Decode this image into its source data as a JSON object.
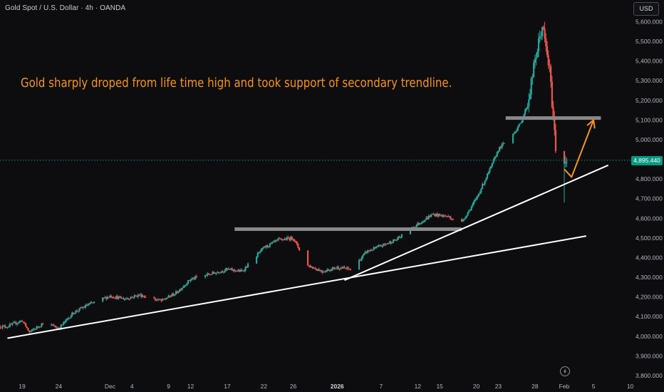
{
  "header": {
    "symbol_title": "Gold Spot / U.S. Dollar · 4h · OANDA",
    "currency_label": "USD"
  },
  "annotation": "Gold sharply droped from life time high and took support of secondary trendline.",
  "current_price_label": "4,895.440",
  "time_icon": "lightning-icon",
  "colors": {
    "background": "#0d0d0f",
    "up": "#26a69a",
    "down": "#ef5350",
    "annotation": "#f7931a",
    "price_line": "#089981",
    "level": "#888888",
    "trendline": "#ffffff"
  },
  "chart_data": {
    "type": "candlestick",
    "title": "",
    "xlabel": "",
    "ylabel": "",
    "ylim": [
      3760,
      5640
    ],
    "grid": false,
    "y_ticks": [
      "3,800.000",
      "3,900.000",
      "4,000.000",
      "4,100.000",
      "4,200.000",
      "4,300.000",
      "4,400.000",
      "4,500.000",
      "4,600.000",
      "4,700.000",
      "4,800.000",
      "4,900.000",
      "5,000.000",
      "5,100.000",
      "5,200.000",
      "5,300.000",
      "5,400.000",
      "5,500.000",
      "5,600.000"
    ],
    "y_tick_values": [
      3800,
      3900,
      4000,
      4100,
      4200,
      4300,
      4400,
      4500,
      4600,
      4700,
      4800,
      4900,
      5000,
      5100,
      5200,
      5300,
      5400,
      5500,
      5600
    ],
    "x_range": [
      "2025-11-16",
      "2026-02-09"
    ],
    "x_ticks": [
      "19",
      "24",
      "Dec",
      "4",
      "9",
      "12",
      "17",
      "22",
      "26",
      "2026",
      "7",
      "12",
      "15",
      "20",
      "23",
      "28",
      "Feb",
      "5",
      "10"
    ],
    "x_tick_dates": [
      "2025-11-19",
      "2025-11-24",
      "2025-12-01",
      "2025-12-04",
      "2025-12-09",
      "2025-12-12",
      "2025-12-17",
      "2025-12-22",
      "2025-12-26",
      "2026-01-01",
      "2026-01-07",
      "2026-01-12",
      "2026-01-15",
      "2026-01-20",
      "2026-01-23",
      "2026-01-28",
      "2026-02-01",
      "2026-02-05",
      "2026-02-10"
    ],
    "series": [
      {
        "style": "candles",
        "points": [
          [
            "2025-11-17",
            4050
          ],
          [
            "2025-11-19",
            4080
          ],
          [
            "2025-11-20",
            4020
          ],
          [
            "2025-11-22",
            4070
          ],
          [
            "2025-11-24",
            4040
          ],
          [
            "2025-11-26",
            4120
          ],
          [
            "2025-11-28",
            4160
          ],
          [
            "2025-12-01",
            4205
          ],
          [
            "2025-12-03",
            4190
          ],
          [
            "2025-12-05",
            4210
          ],
          [
            "2025-12-08",
            4180
          ],
          [
            "2025-12-10",
            4220
          ],
          [
            "2025-12-12",
            4290
          ],
          [
            "2025-12-15",
            4320
          ],
          [
            "2025-12-17",
            4340
          ],
          [
            "2025-12-19",
            4330
          ],
          [
            "2025-12-22",
            4450
          ],
          [
            "2025-12-24",
            4490
          ],
          [
            "2025-12-26",
            4500
          ],
          [
            "2025-12-28",
            4360
          ],
          [
            "2025-12-30",
            4330
          ],
          [
            "2026-01-01",
            4350
          ],
          [
            "2026-01-03",
            4340
          ],
          [
            "2026-01-05",
            4430
          ],
          [
            "2026-01-07",
            4460
          ],
          [
            "2026-01-09",
            4490
          ],
          [
            "2026-01-12",
            4570
          ],
          [
            "2026-01-14",
            4620
          ],
          [
            "2026-01-16",
            4610
          ],
          [
            "2026-01-18",
            4580
          ],
          [
            "2026-01-20",
            4700
          ],
          [
            "2026-01-22",
            4860
          ],
          [
            "2026-01-23",
            4950
          ],
          [
            "2026-01-25",
            5030
          ],
          [
            "2026-01-26",
            5080
          ],
          [
            "2026-01-27",
            5180
          ],
          [
            "2026-01-28",
            5400
          ],
          [
            "2026-01-29",
            5580
          ],
          [
            "2026-01-30",
            5350
          ],
          [
            "2026-01-31",
            4880
          ],
          [
            "2026-02-01",
            4895
          ]
        ]
      }
    ],
    "levels": [
      {
        "from": "2025-12-18",
        "to": "2026-01-18",
        "y": 4545
      },
      {
        "from": "2026-01-24",
        "to": "2026-02-06",
        "y": 5110
      }
    ],
    "trendlines": [
      {
        "from": [
          "2025-11-17",
          3990
        ],
        "to": [
          "2026-02-04",
          4510
        ]
      },
      {
        "from": [
          "2026-01-02",
          4285
        ],
        "to": [
          "2026-02-07",
          4870
        ]
      }
    ],
    "projection": [
      [
        "2026-02-01",
        4850
      ],
      [
        "2026-02-02",
        4810
      ],
      [
        "2026-02-05",
        5100
      ]
    ]
  }
}
